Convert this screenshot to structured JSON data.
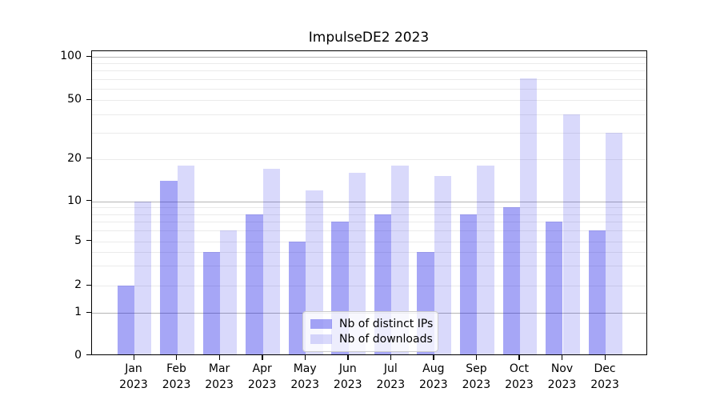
{
  "figure": {
    "title": "ImpulseDE2 2023"
  },
  "chart_data": {
    "type": "bar",
    "title": "ImpulseDE2 2023",
    "categories": [
      "Jan 2023",
      "Feb 2023",
      "Mar 2023",
      "Apr 2023",
      "May 2023",
      "Jun 2023",
      "Jul 2023",
      "Aug 2023",
      "Sep 2023",
      "Oct 2023",
      "Nov 2023",
      "Dec 2023"
    ],
    "month_labels": [
      "Jan",
      "Feb",
      "Mar",
      "Apr",
      "May",
      "Jun",
      "Jul",
      "Aug",
      "Sep",
      "Oct",
      "Nov",
      "Dec"
    ],
    "year_label": "2023",
    "series": [
      {
        "name": "Nb of distinct IPs",
        "color": "rgba(0,0,230,0.35)",
        "color_hex": "#a6a6f6",
        "values": [
          2,
          14,
          4,
          8,
          5,
          7,
          8,
          4,
          8,
          9,
          7,
          6
        ]
      },
      {
        "name": "Nb of downloads",
        "color": "rgba(0,0,230,0.15)",
        "color_hex": "#d9d9fb",
        "values": [
          10,
          18,
          6,
          17,
          12,
          16,
          18,
          15,
          18,
          71,
          40,
          30
        ]
      }
    ],
    "xlabel": "",
    "ylabel": "",
    "yscale": "asinh",
    "ylim": [
      0,
      100
    ],
    "y_ticks": [
      0,
      1,
      2,
      5,
      10,
      20,
      50,
      100
    ],
    "y_gridlines_major": [
      1,
      10,
      100
    ],
    "y_gridlines_minor": [
      2,
      3,
      4,
      5,
      6,
      7,
      8,
      9,
      20,
      30,
      40,
      50,
      60,
      70,
      80,
      90
    ],
    "grid": true,
    "legend_position": "lower center"
  },
  "legend": {
    "items": [
      "Nb of distinct IPs",
      "Nb of downloads"
    ]
  }
}
